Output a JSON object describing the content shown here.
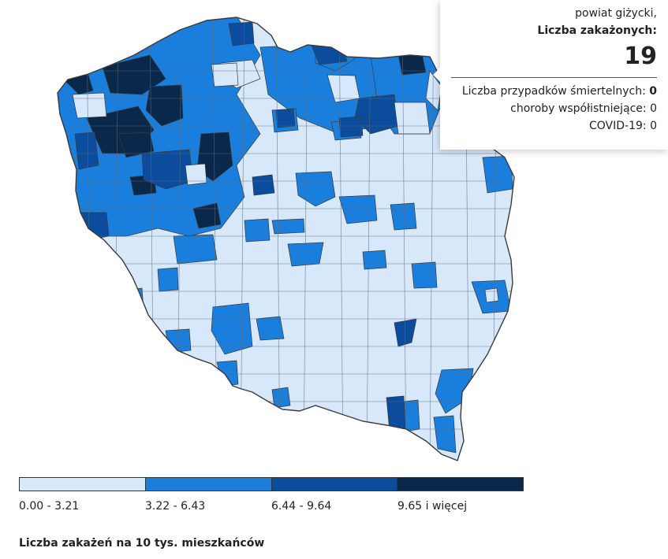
{
  "tooltip": {
    "region": "powiat giżycki,",
    "metric_label": "Liczba zakażonych:",
    "metric_value": "19",
    "deaths_label": "Liczba przypadków śmiertelnych:",
    "deaths_value": "0",
    "comorbid_label": "choroby współistniejące:",
    "comorbid_value": "0",
    "covid_label": "COVID-19:",
    "covid_value": "0"
  },
  "legend": {
    "bins": [
      {
        "label": "0.00 - 3.21",
        "color": "#d7e8fa"
      },
      {
        "label": "3.22 - 6.43",
        "color": "#1a7fdc"
      },
      {
        "label": "6.44 - 9.64",
        "color": "#0b4c9d"
      },
      {
        "label": "9.65 i więcej",
        "color": "#0a2849"
      }
    ],
    "caption": "Liczba zakażeń na 10 tys. mieszkańców"
  },
  "colors": {
    "border": "#3a3a3a",
    "district_line": "#5a6b80",
    "bin0": "#d7e8fa",
    "bin1": "#1a7fdc",
    "bin2": "#0b4c9d",
    "bin3": "#0a2849"
  }
}
